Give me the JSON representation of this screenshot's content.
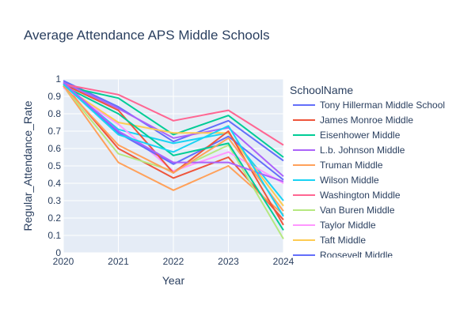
{
  "chart_data": {
    "type": "line",
    "title": "Average Attendance APS Middle Schools",
    "xlabel": "Year",
    "ylabel": "Regular_Attendance_Rate",
    "x": [
      2020,
      2021,
      2022,
      2023,
      2024
    ],
    "xlim": [
      2020,
      2024
    ],
    "ylim": [
      0,
      1
    ],
    "yticks": [
      "0",
      "0.1",
      "0.2",
      "0.3",
      "0.4",
      "0.5",
      "0.6",
      "0.7",
      "0.8",
      "0.9",
      "1"
    ],
    "grid": true,
    "legend": {
      "title": "SchoolName",
      "placement": "right"
    },
    "series": [
      {
        "name": "Tony Hillerman Middle School",
        "color": "#636efa",
        "values": [
          0.99,
          0.84,
          0.64,
          0.76,
          0.53
        ]
      },
      {
        "name": "James Monroe Middle",
        "color": "#ef553b",
        "values": [
          0.97,
          0.6,
          0.43,
          0.55,
          0.19
        ]
      },
      {
        "name": "Eisenhower Middle",
        "color": "#00cc96",
        "values": [
          0.96,
          0.89,
          0.68,
          0.79,
          0.55
        ]
      },
      {
        "name": "L.b. Johnson Middle",
        "color": "#ab63fa",
        "values": [
          0.98,
          0.83,
          0.66,
          0.72,
          0.44
        ]
      },
      {
        "name": "Truman Middle",
        "color": "#ffa15a",
        "values": [
          0.96,
          0.52,
          0.36,
          0.5,
          0.22
        ]
      },
      {
        "name": "Wilson Middle",
        "color": "#19d3f3",
        "values": [
          0.97,
          0.71,
          0.63,
          0.69,
          0.3
        ]
      },
      {
        "name": "Washington Middle",
        "color": "#ff6692",
        "values": [
          0.97,
          0.91,
          0.76,
          0.82,
          0.62
        ]
      },
      {
        "name": "Van Buren Middle",
        "color": "#b6e880",
        "values": [
          0.96,
          0.57,
          0.47,
          0.62,
          0.08
        ]
      },
      {
        "name": "Taylor Middle",
        "color": "#ff97ff",
        "values": [
          0.95,
          0.74,
          0.47,
          0.58,
          0.4
        ]
      },
      {
        "name": "Taft Middle",
        "color": "#fecb52",
        "values": [
          0.96,
          0.75,
          0.69,
          0.69,
          0.27
        ]
      },
      {
        "name": "Roosevelt Middle",
        "color": "#636efa",
        "values": [
          0.98,
          0.69,
          0.51,
          0.67,
          0.42
        ]
      },
      {
        "name": null,
        "color": "#ef553b",
        "values": [
          0.97,
          0.82,
          0.46,
          0.7,
          0.16
        ]
      },
      {
        "name": null,
        "color": "#00cc96",
        "values": [
          0.96,
          0.8,
          0.56,
          0.63,
          0.13
        ]
      },
      {
        "name": null,
        "color": "#ab63fa",
        "values": [
          0.98,
          0.7,
          0.52,
          0.52,
          0.41
        ]
      },
      {
        "name": null,
        "color": "#ffa15a",
        "values": [
          0.96,
          0.62,
          0.46,
          0.66,
          0.24
        ]
      },
      {
        "name": null,
        "color": "#19d3f3",
        "values": [
          0.97,
          0.68,
          0.58,
          0.73,
          0.21
        ]
      }
    ]
  }
}
